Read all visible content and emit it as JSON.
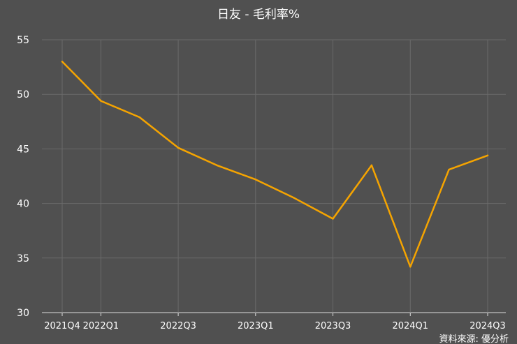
{
  "colors": {
    "background": "#505050",
    "line": "#F5A400",
    "text": "#FFFFFF",
    "grid": "#6A6A6A",
    "axis": "#DDDDDD"
  },
  "chart_data": {
    "type": "line",
    "title": "日友 - 毛利率%",
    "xlabel": "",
    "ylabel": "",
    "ylim": [
      30,
      55
    ],
    "yticks": [
      30,
      35,
      40,
      45,
      50,
      55
    ],
    "grid": true,
    "legend": "none",
    "categories": [
      "2021Q4",
      "2022Q1",
      "2022Q2",
      "2022Q3",
      "2022Q4",
      "2023Q1",
      "2023Q2",
      "2023Q3",
      "2023Q4",
      "2024Q1",
      "2024Q2",
      "2024Q3"
    ],
    "xtick_labels": [
      "2021Q4",
      "2022Q1",
      "",
      "2022Q3",
      "",
      "2023Q1",
      "",
      "2023Q3",
      "",
      "2024Q1",
      "",
      "2024Q3"
    ],
    "series": [
      {
        "values": [
          53.0,
          49.4,
          47.9,
          45.1,
          43.5,
          42.2,
          40.5,
          38.6,
          43.5,
          34.2,
          43.1,
          44.4
        ]
      }
    ],
    "source": "資料來源: 優分析"
  }
}
